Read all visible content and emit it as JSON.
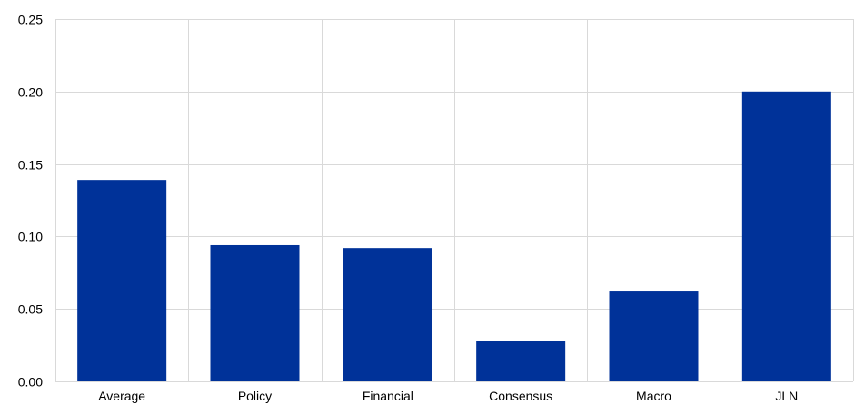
{
  "chart_data": {
    "type": "bar",
    "categories": [
      "Average",
      "Policy",
      "Financial",
      "Consensus",
      "Macro",
      "JLN"
    ],
    "values": [
      0.139,
      0.094,
      0.092,
      0.028,
      0.062,
      0.2
    ],
    "title": "",
    "xlabel": "",
    "ylabel": "",
    "ylim": [
      0,
      0.25
    ],
    "yticks": [
      "0.00",
      "0.05",
      "0.10",
      "0.15",
      "0.20",
      "0.25"
    ],
    "ytick_values": [
      0,
      0.05,
      0.1,
      0.15,
      0.2,
      0.25
    ],
    "grid": true,
    "legend": "none",
    "bar_color": "#003299",
    "grid_color": "#d9d9d9"
  }
}
